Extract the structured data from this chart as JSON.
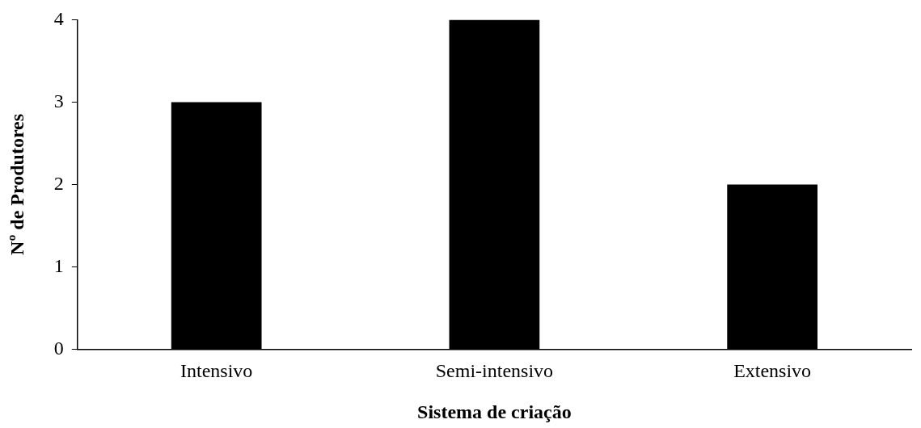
{
  "chart_data": {
    "type": "bar",
    "xlabel": "Sistema de criação",
    "ylabel": "Nº de Produtores",
    "categories": [
      "Intensivo",
      "Semi-intensivo",
      "Extensivo"
    ],
    "values": [
      3,
      4,
      2
    ],
    "color": "#000000",
    "ylim": [
      0,
      4
    ],
    "yticks": [
      0,
      1,
      2,
      3,
      4
    ],
    "grid": false,
    "legend": false
  }
}
